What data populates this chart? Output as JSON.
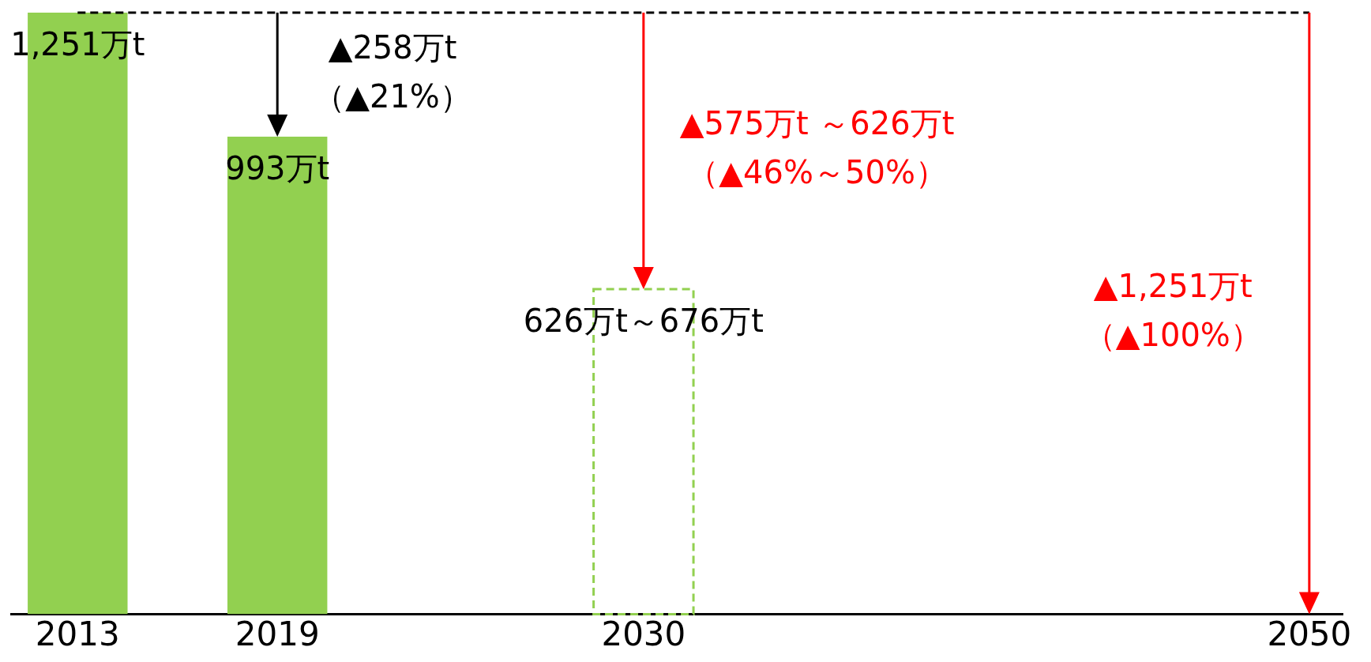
{
  "chart_data": {
    "type": "bar",
    "x": [
      2013,
      2019,
      2030,
      2050
    ],
    "series": [
      {
        "color": "#92d050",
        "values": [
          1251,
          993,
          null,
          0
        ],
        "value_labels": [
          "1,251万t",
          "993万t",
          null,
          null
        ]
      },
      {
        "color": "#92d050",
        "line_style": "dashed",
        "values": [
          null,
          null,
          676,
          null
        ],
        "value_labels": [
          null,
          null,
          "626万t～676万t",
          null
        ]
      }
    ],
    "xlim": [
      2011,
      2051
    ],
    "xticks": [
      2013,
      2019,
      2030,
      2050
    ],
    "grid": false,
    "legend": false,
    "ref_lines": [
      {
        "axis": "y",
        "value": 1251,
        "line_style": "dashed",
        "color": "#000000"
      }
    ],
    "annotations": [
      "▲258万t\n（▲21%）",
      "▲575万t ～626万t\n（▲46%～50%）",
      "▲1,251万t\n（▲100%）"
    ]
  }
}
